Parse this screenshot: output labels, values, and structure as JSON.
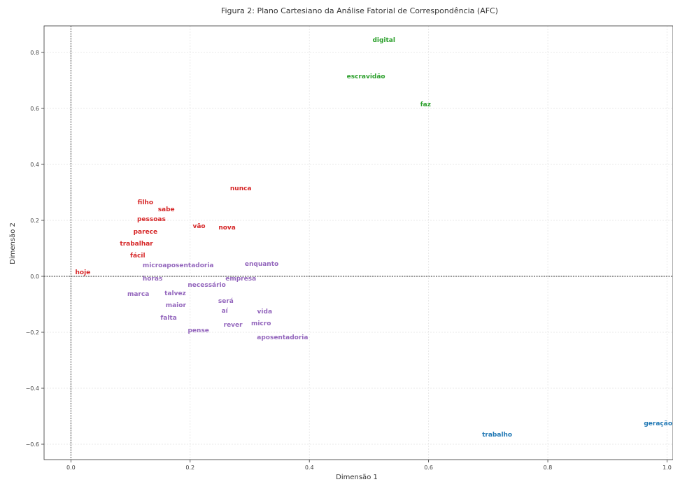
{
  "chart_data": {
    "type": "scatter",
    "title": "Figura 2: Plano Cartesiano da Análise Fatorial de Correspondência (AFC)",
    "xlabel": "Dimensão 1",
    "ylabel": "Dimensão 2",
    "xlim": [
      -0.045,
      1.01
    ],
    "ylim": [
      -0.655,
      0.895
    ],
    "xticks": [
      0.0,
      0.2,
      0.4,
      0.6,
      0.8,
      1.0
    ],
    "xtick_labels": [
      "0.0",
      "0.2",
      "0.4",
      "0.6",
      "0.8",
      "1.0"
    ],
    "yticks": [
      -0.6,
      -0.4,
      -0.2,
      0.0,
      0.2,
      0.4,
      0.6,
      0.8
    ],
    "ytick_labels": [
      "−0.6",
      "−0.4",
      "−0.2",
      "0.0",
      "0.2",
      "0.4",
      "0.6",
      "0.8"
    ],
    "grid": true,
    "reference_lines": {
      "x": 0.0,
      "y": 0.0
    },
    "series": [
      {
        "color": "#2ca02c",
        "points": [
          {
            "label": "digital",
            "x": 0.525,
            "y": 0.845
          },
          {
            "label": "escravidão",
            "x": 0.495,
            "y": 0.715
          },
          {
            "label": "faz",
            "x": 0.595,
            "y": 0.615
          }
        ]
      },
      {
        "color": "#d62728",
        "points": [
          {
            "label": "nunca",
            "x": 0.285,
            "y": 0.315
          },
          {
            "label": "filho",
            "x": 0.125,
            "y": 0.265
          },
          {
            "label": "sabe",
            "x": 0.16,
            "y": 0.24
          },
          {
            "label": "pessoas",
            "x": 0.135,
            "y": 0.205
          },
          {
            "label": "vão",
            "x": 0.215,
            "y": 0.18
          },
          {
            "label": "nova",
            "x": 0.262,
            "y": 0.175
          },
          {
            "label": "parece",
            "x": 0.125,
            "y": 0.16
          },
          {
            "label": "trabalhar",
            "x": 0.11,
            "y": 0.118
          },
          {
            "label": "fácil",
            "x": 0.112,
            "y": 0.075
          },
          {
            "label": "hoje",
            "x": 0.02,
            "y": 0.015
          }
        ]
      },
      {
        "color": "#9467bd",
        "points": [
          {
            "label": "microaposentadoria",
            "x": 0.18,
            "y": 0.04
          },
          {
            "label": "enquanto",
            "x": 0.32,
            "y": 0.045
          },
          {
            "label": "horas",
            "x": 0.137,
            "y": -0.008
          },
          {
            "label": "empresa",
            "x": 0.285,
            "y": -0.008
          },
          {
            "label": "necessário",
            "x": 0.228,
            "y": -0.03
          },
          {
            "label": "marca",
            "x": 0.113,
            "y": -0.063
          },
          {
            "label": "talvez",
            "x": 0.175,
            "y": -0.06
          },
          {
            "label": "será",
            "x": 0.26,
            "y": -0.088
          },
          {
            "label": "maior",
            "x": 0.176,
            "y": -0.103
          },
          {
            "label": "aí",
            "x": 0.258,
            "y": -0.123
          },
          {
            "label": "vida",
            "x": 0.325,
            "y": -0.125
          },
          {
            "label": "falta",
            "x": 0.164,
            "y": -0.148
          },
          {
            "label": "rever",
            "x": 0.272,
            "y": -0.173
          },
          {
            "label": "micro",
            "x": 0.319,
            "y": -0.168
          },
          {
            "label": "pense",
            "x": 0.214,
            "y": -0.193
          },
          {
            "label": "aposentadoria",
            "x": 0.355,
            "y": -0.218
          }
        ]
      },
      {
        "color": "#1f77b4",
        "points": [
          {
            "label": "trabalho",
            "x": 0.715,
            "y": -0.565
          },
          {
            "label": "geração",
            "x": 0.985,
            "y": -0.525
          }
        ]
      }
    ]
  }
}
